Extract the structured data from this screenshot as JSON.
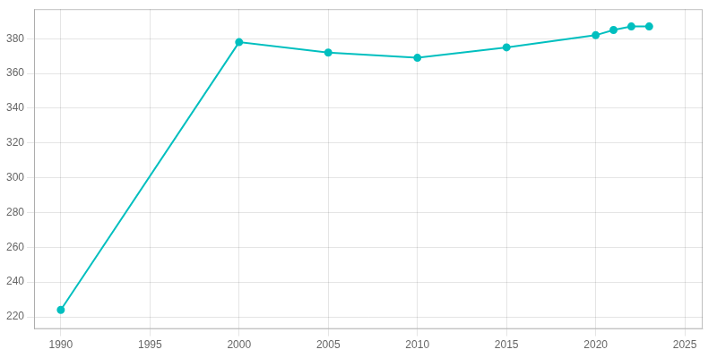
{
  "chart_data": {
    "type": "line",
    "x": [
      1990,
      2000,
      2005,
      2010,
      2015,
      2020,
      2021,
      2022,
      2023
    ],
    "values": [
      224,
      378,
      372,
      369,
      375,
      382,
      385,
      387,
      387
    ],
    "color": "#00BFBF",
    "marker": "circle",
    "xlim": [
      1988.5,
      2026
    ],
    "ylim": [
      213,
      397
    ],
    "xticks": [
      1990,
      1995,
      2000,
      2005,
      2010,
      2015,
      2020,
      2025
    ],
    "yticks": [
      220,
      240,
      260,
      280,
      300,
      320,
      340,
      360,
      380
    ],
    "grid": true
  }
}
